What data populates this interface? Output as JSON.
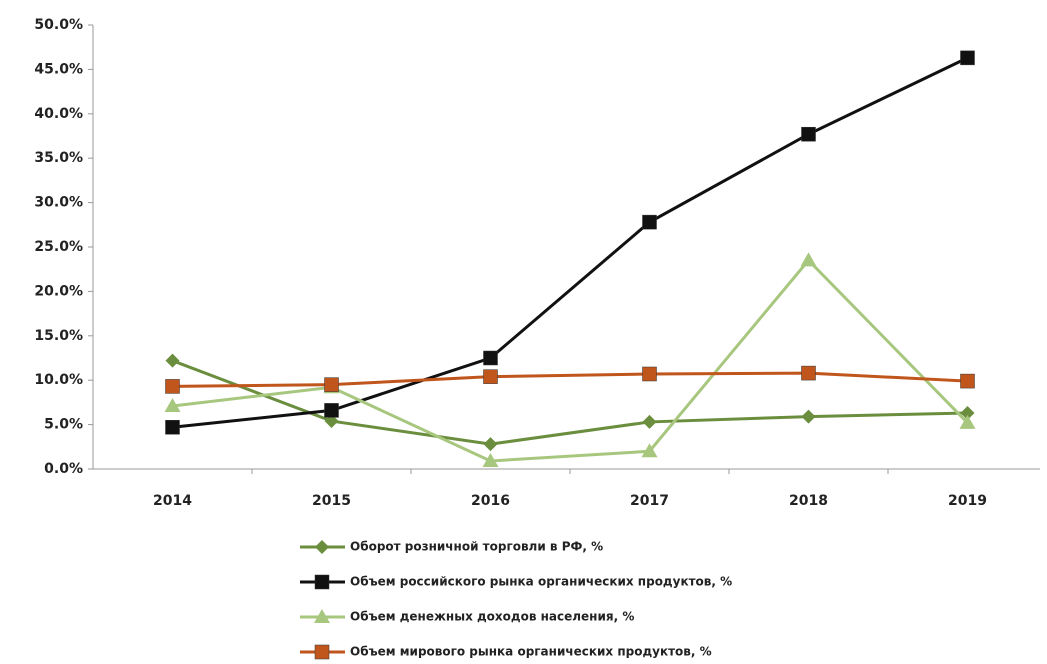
{
  "chart_data": {
    "type": "line",
    "categories": [
      "2014",
      "2015",
      "2016",
      "2017",
      "2018",
      "2019"
    ],
    "series": [
      {
        "name": "Оборот розничной торговли в РФ, %",
        "color": "#6b8e3e",
        "marker": "diamond",
        "values": [
          12.2,
          5.4,
          2.8,
          5.3,
          5.9,
          6.3
        ]
      },
      {
        "name": "Объем российского рынка органических продуктов, %",
        "color": "#111111",
        "marker": "square",
        "values": [
          4.7,
          6.6,
          12.5,
          27.8,
          37.7,
          46.3
        ]
      },
      {
        "name": "Объем денежных доходов населения, %",
        "color": "#a8c77e",
        "marker": "triangle",
        "values": [
          7.1,
          9.2,
          0.9,
          2.0,
          23.5,
          5.2
        ]
      },
      {
        "name": "Объем мирового рынка органических продуктов, %",
        "color": "#c0561c",
        "marker": "square",
        "values": [
          9.3,
          9.5,
          10.4,
          10.7,
          10.8,
          9.9
        ]
      }
    ],
    "ylim": [
      0,
      50
    ],
    "yticks": [
      {
        "value": 0,
        "label": "0.0%"
      },
      {
        "value": 5,
        "label": "5.0%"
      },
      {
        "value": 10,
        "label": "10.0%"
      },
      {
        "value": 15,
        "label": "15.0%"
      },
      {
        "value": 20,
        "label": "20.0%"
      },
      {
        "value": 25,
        "label": "25.0%"
      },
      {
        "value": 30,
        "label": "30.0%"
      },
      {
        "value": 35,
        "label": "35.0%"
      },
      {
        "value": 40,
        "label": "40.0%"
      },
      {
        "value": 45,
        "label": "45.0%"
      },
      {
        "value": 50,
        "label": "50.0%"
      }
    ],
    "grid": false,
    "legend": "bottom"
  }
}
